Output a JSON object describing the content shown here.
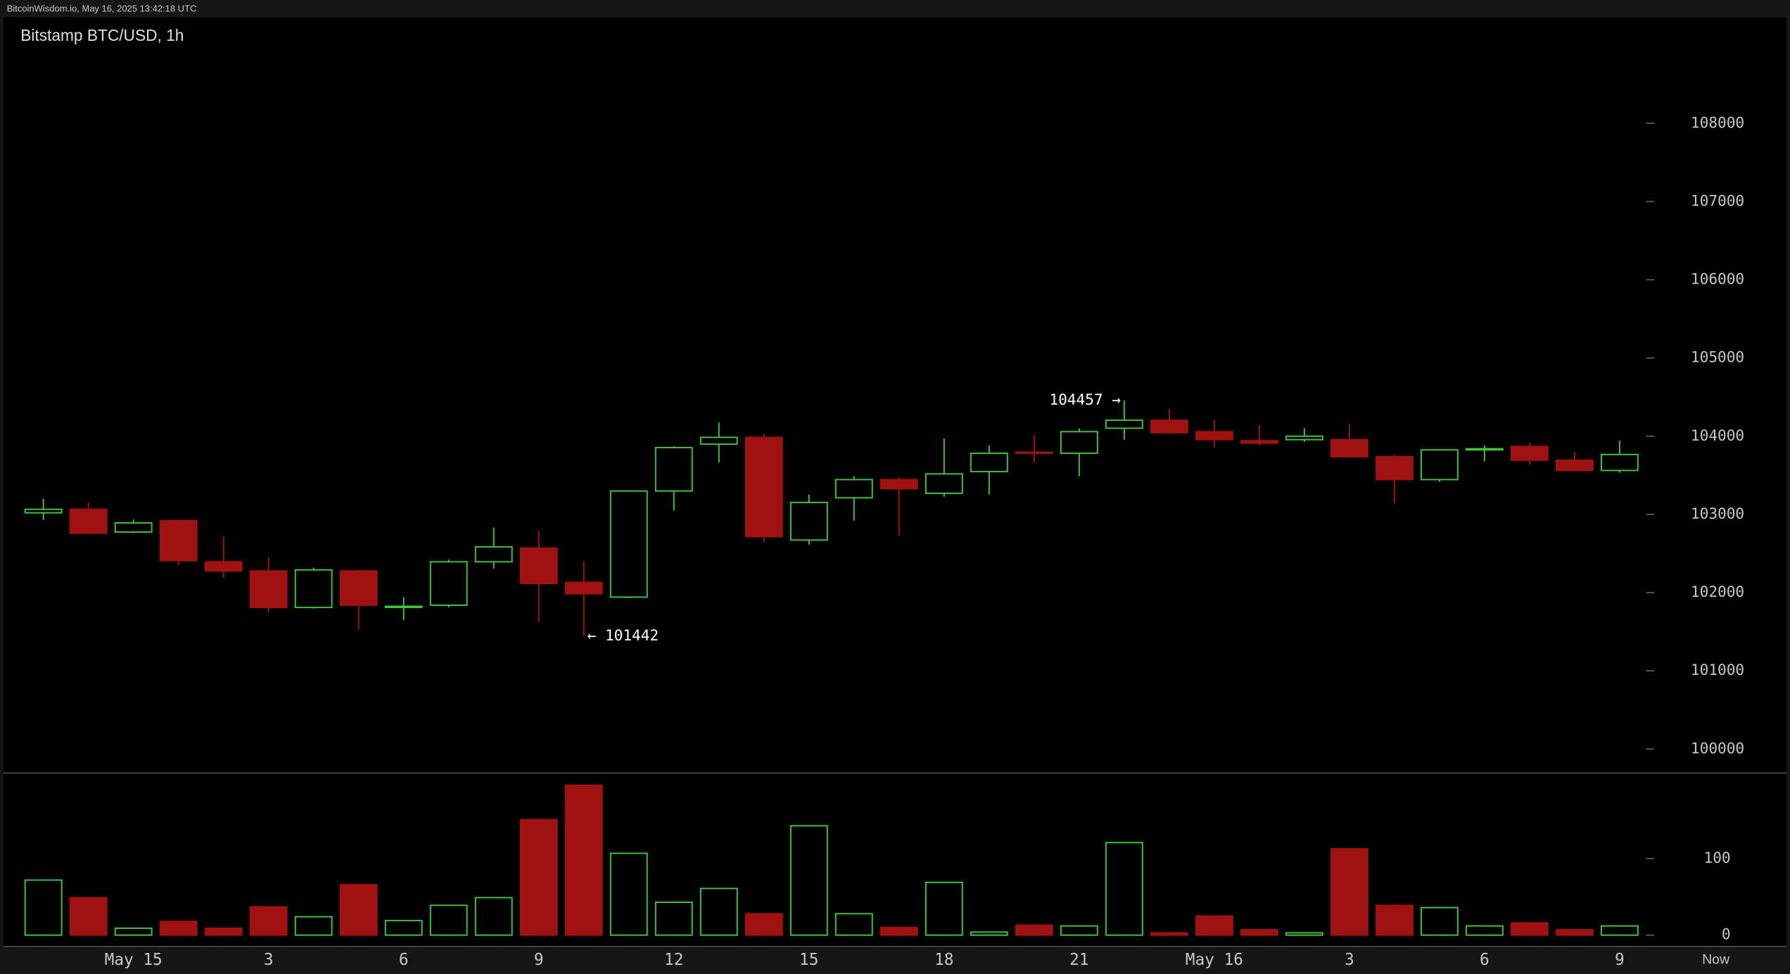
{
  "header": "BitcoinWisdom.io, May 16, 2025 13:42:18 UTC",
  "chart_data": {
    "type": "candlestick",
    "title": "Bitstamp BTC/USD, 1h",
    "categories": [
      null,
      null,
      "May 15",
      null,
      null,
      "3",
      null,
      null,
      "6",
      null,
      null,
      "9",
      null,
      null,
      "12",
      null,
      null,
      "15",
      null,
      null,
      "18",
      null,
      null,
      "21",
      null,
      null,
      "May 16",
      null,
      null,
      "3",
      null,
      null,
      "6",
      null,
      null,
      "9"
    ],
    "now_label": "Now",
    "open": [
      103020,
      103066,
      102774,
      102920,
      102394,
      102277,
      101810,
      102277,
      101810,
      101839,
      102394,
      102570,
      102131,
      101942,
      103299,
      103898,
      103985,
      102672,
      103212,
      103445,
      103270,
      103547,
      103796,
      103781,
      104102,
      104204,
      104058,
      103942,
      103956,
      103956,
      103737,
      103445,
      103825,
      103869,
      103693,
      103562
    ],
    "high": [
      103200,
      103153,
      102934,
      102920,
      102715,
      102453,
      102320,
      102290,
      101942,
      102423,
      102832,
      102788,
      102394,
      103310,
      103870,
      104175,
      104030,
      103255,
      103489,
      103474,
      103970,
      103883,
      104015,
      104102,
      104457,
      104350,
      104204,
      104146,
      104102,
      104160,
      103766,
      103830,
      103883,
      103912,
      103796,
      103942
    ],
    "low": [
      102930,
      102750,
      102760,
      102350,
      102190,
      101752,
      101795,
      101533,
      101650,
      101810,
      102307,
      101620,
      101442,
      101930,
      103051,
      103664,
      102642,
      102613,
      102920,
      102730,
      103226,
      103255,
      103664,
      103489,
      103956,
      104030,
      103854,
      103883,
      103927,
      103737,
      103139,
      103416,
      103679,
      103635,
      103562,
      103533
    ],
    "close": [
      103065,
      102759,
      102891,
      102409,
      102277,
      101810,
      102290,
      101839,
      101825,
      102394,
      102584,
      102117,
      101985,
      103299,
      103854,
      103985,
      102715,
      103153,
      103445,
      103328,
      103518,
      103781,
      103781,
      104058,
      104204,
      104044,
      103956,
      103912,
      104000,
      103737,
      103445,
      103825,
      103840,
      103693,
      103562,
      103766
    ],
    "volume": [
      72,
      49,
      9,
      18,
      9,
      37,
      24,
      66,
      19,
      39,
      49,
      151,
      196,
      107,
      43,
      61,
      28,
      143,
      28,
      10,
      69,
      4,
      13,
      12,
      121,
      3,
      25,
      7,
      3,
      113,
      39,
      36,
      12,
      16,
      7,
      12
    ],
    "up_color": "#3fc43f",
    "down_color": "#a01212",
    "ylim": [
      99693,
      109358
    ],
    "yticks": [
      100000,
      101000,
      102000,
      103000,
      104000,
      105000,
      106000,
      107000,
      108000
    ],
    "volume_ylim": [
      -15,
      212
    ],
    "volume_yticks": [
      0,
      100
    ],
    "annotations": {
      "max": "104457 →",
      "min": "← 101442"
    }
  }
}
